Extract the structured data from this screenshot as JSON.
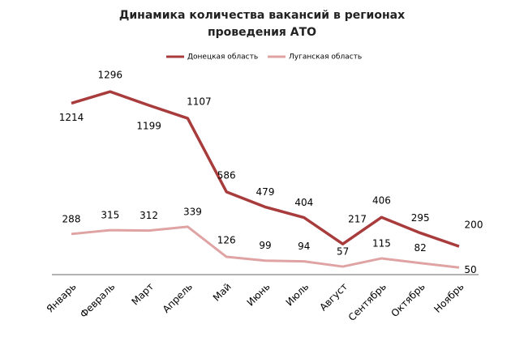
{
  "chart_data": {
    "type": "line",
    "title": [
      "Динамика количества вакансий в регионах",
      "проведения АТО"
    ],
    "categories": [
      "Январь",
      "Февраль",
      "Март",
      "Апрель",
      "Май",
      "Июнь",
      "Июль",
      "Август",
      "Сентябрь",
      "Октябрь",
      "Ноябрь"
    ],
    "series": [
      {
        "name": "Донецкая область",
        "color": "#a83c3c",
        "values": [
          1214,
          1296,
          1199,
          1107,
          586,
          479,
          404,
          217,
          406,
          295,
          200
        ]
      },
      {
        "name": "Луганская область",
        "color": "#e0a3a3",
        "values": [
          288,
          315,
          312,
          339,
          126,
          99,
          94,
          57,
          115,
          82,
          50
        ]
      }
    ],
    "ylim": [
      0,
      1400
    ]
  }
}
